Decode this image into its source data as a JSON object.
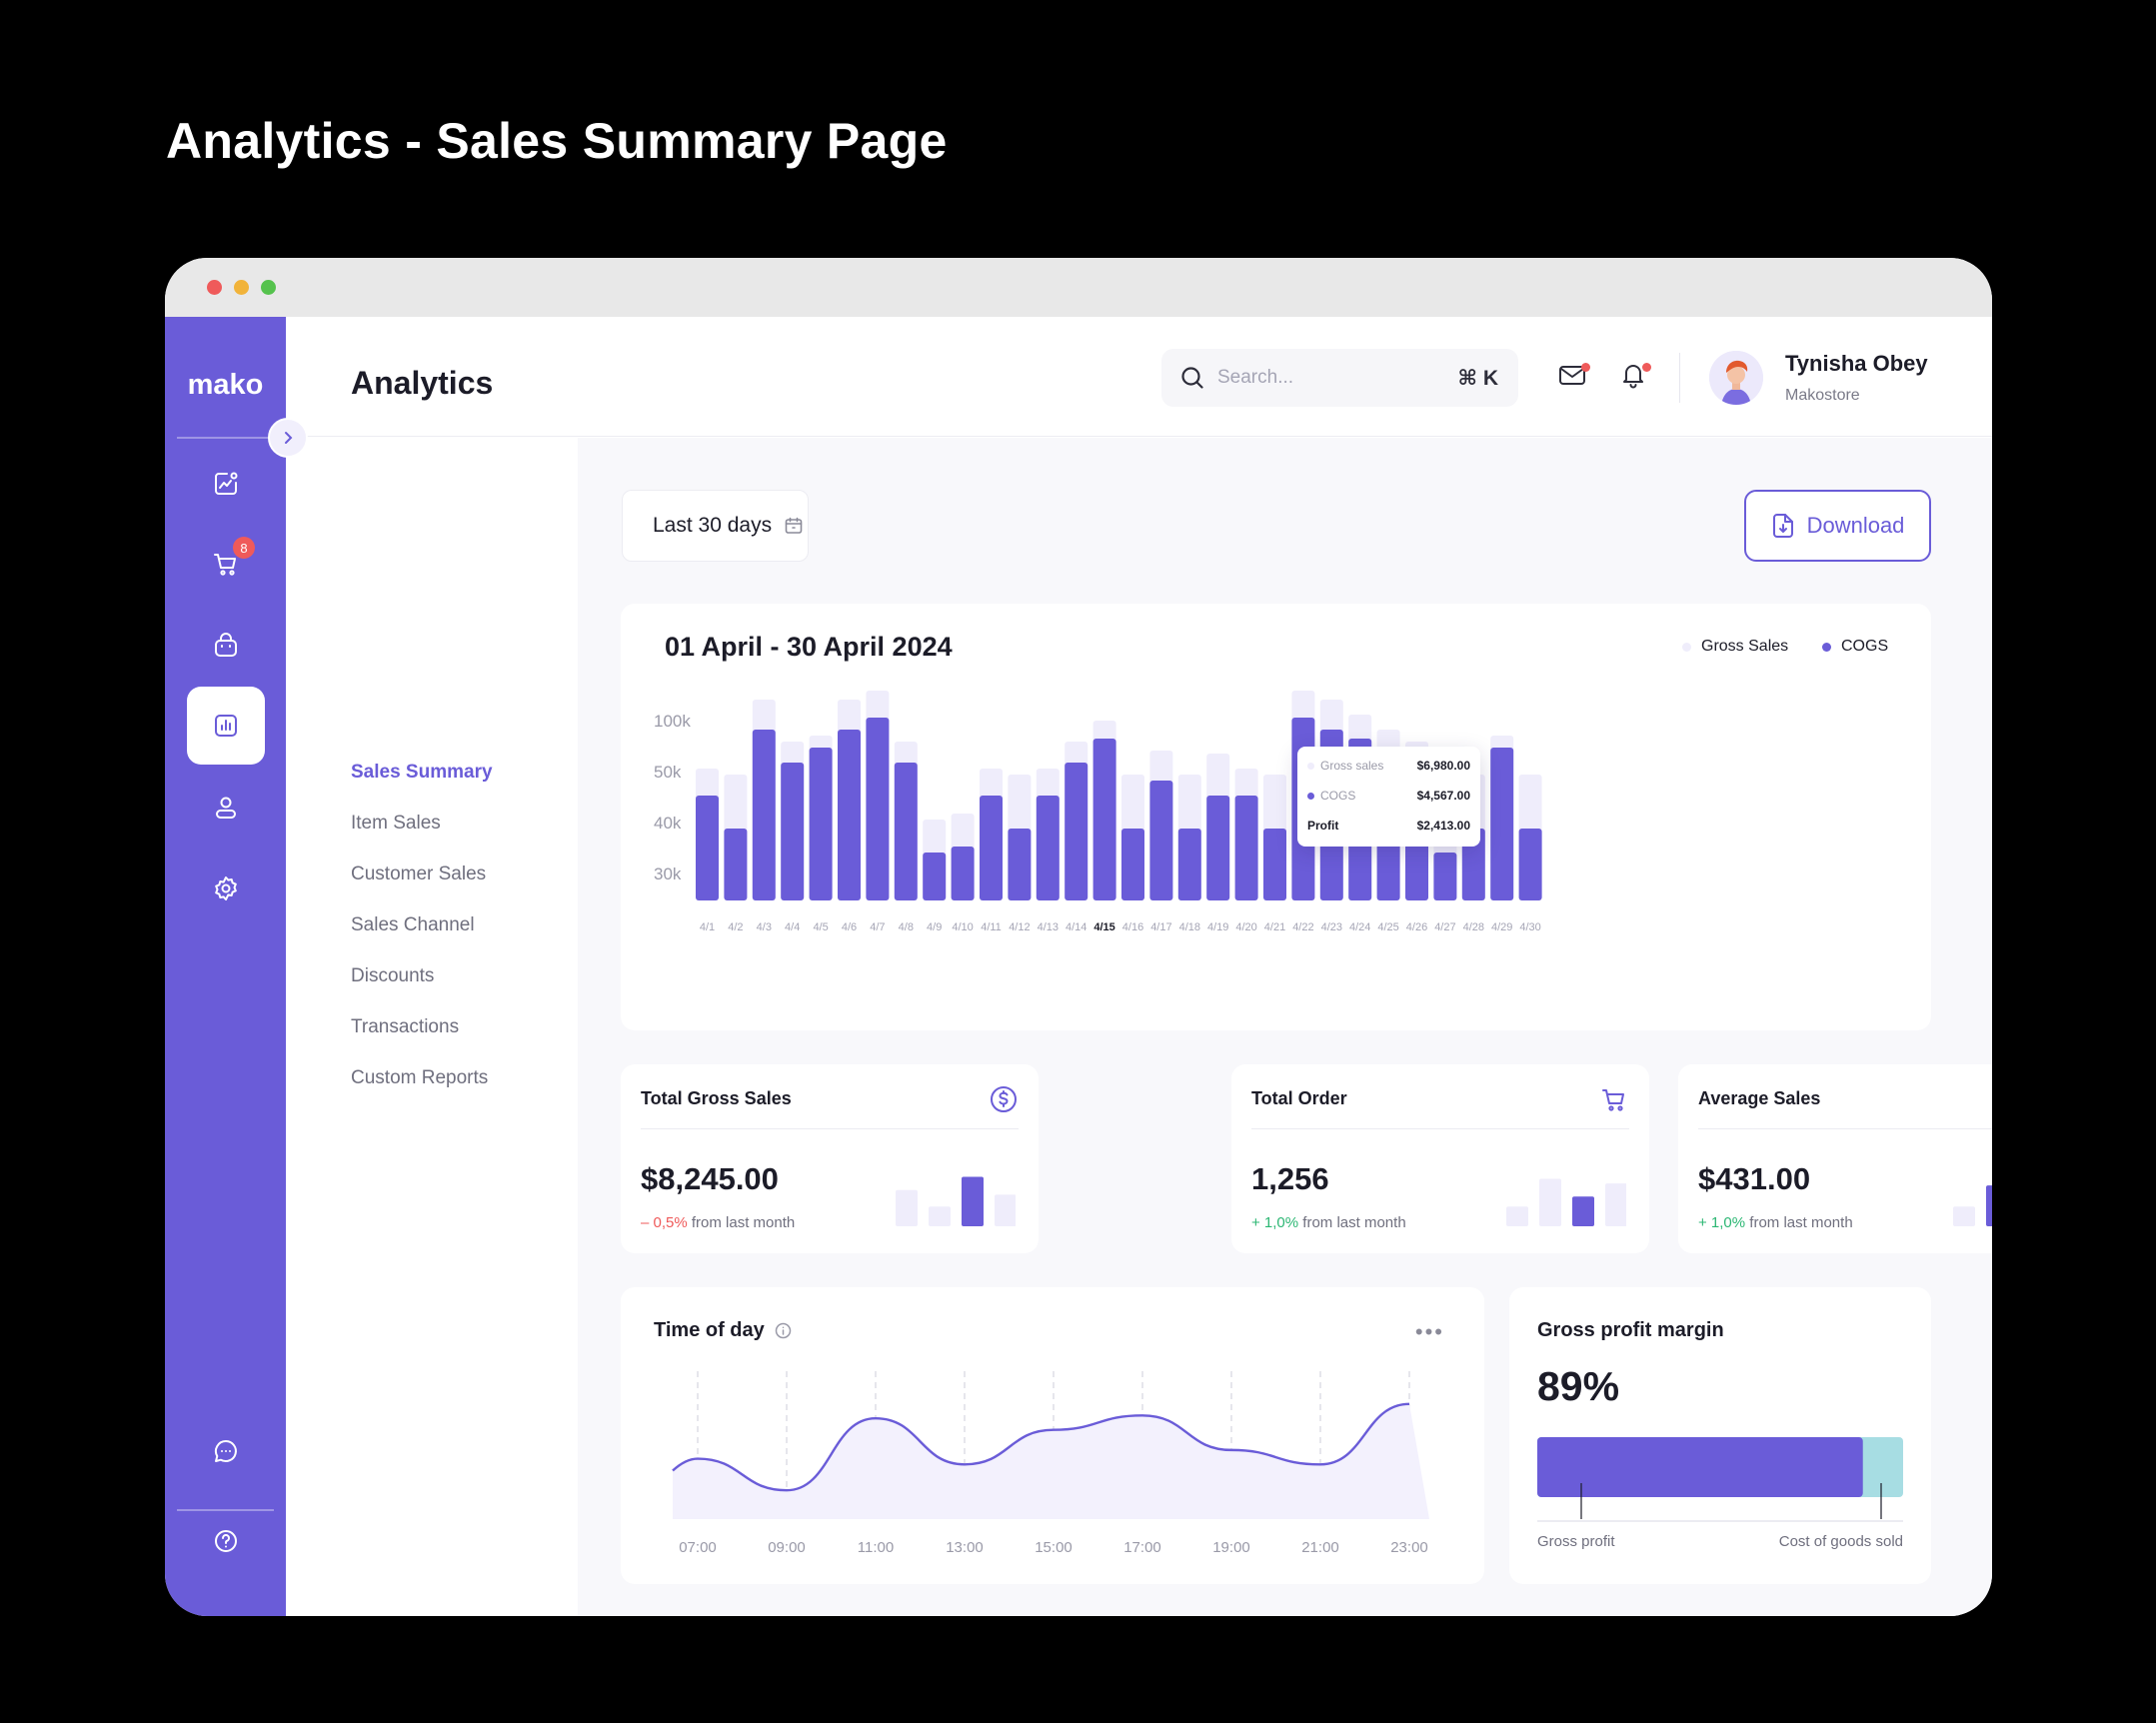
{
  "page_heading": "Analytics - Sales Summary Page",
  "colors": {
    "accent": "#6a5cd8",
    "bar_light": "#efedfb",
    "cost_bar": "#a7dde3",
    "negative": "#ef5a5a",
    "positive": "#2db774"
  },
  "sidebar": {
    "logo": "mako",
    "cart_badge": "8",
    "icons": [
      "dashboard-icon",
      "cart-icon",
      "bag-icon",
      "analytics-icon",
      "user-icon",
      "settings-icon",
      "chat-icon",
      "help-icon"
    ],
    "active": "analytics-icon"
  },
  "header": {
    "title": "Analytics",
    "search": {
      "placeholder": "Search...",
      "shortcut": "⌘ K"
    },
    "user": {
      "name": "Tynisha Obey",
      "store": "Makostore"
    }
  },
  "subnav": {
    "items": [
      {
        "label": "Sales Summary",
        "active": true
      },
      {
        "label": "Item Sales"
      },
      {
        "label": "Customer Sales"
      },
      {
        "label": "Sales Channel"
      },
      {
        "label": "Discounts"
      },
      {
        "label": "Transactions"
      },
      {
        "label": "Custom Reports"
      }
    ]
  },
  "toolbar": {
    "date_range": "Last 30 days",
    "download_label": "Download"
  },
  "sales_chart": {
    "title": "01 April - 30 April 2024",
    "legend": [
      {
        "label": "Gross Sales"
      },
      {
        "label": "COGS"
      }
    ],
    "tooltip": {
      "gross_label": "Gross sales",
      "gross_value": "$6,980.00",
      "cogs_label": "COGS",
      "cogs_value": "$4,567.00",
      "profit_label": "Profit",
      "profit_value": "$2,413.00"
    }
  },
  "chart_data": [
    {
      "type": "bar",
      "title": "01 April - 30 April 2024",
      "categories": [
        "4/1",
        "4/2",
        "4/3",
        "4/4",
        "4/5",
        "4/6",
        "4/7",
        "4/8",
        "4/9",
        "4/10",
        "4/11",
        "4/12",
        "4/13",
        "4/14",
        "4/15",
        "4/16",
        "4/17",
        "4/18",
        "4/19",
        "4/20",
        "4/21",
        "4/22",
        "4/23",
        "4/24",
        "4/25",
        "4/26",
        "4/27",
        "4/28",
        "4/29",
        "4/30"
      ],
      "highlight_category": "4/15",
      "y_tick_labels": [
        "100k",
        "50k",
        "40k",
        "30k"
      ],
      "series": [
        {
          "name": "Gross Sales",
          "values": [
            44,
            42,
            67,
            53,
            55,
            67,
            70,
            53,
            27,
            29,
            44,
            42,
            44,
            53,
            60,
            42,
            50,
            42,
            49,
            44,
            42,
            70,
            67,
            62,
            57,
            53,
            27,
            42,
            55,
            42
          ]
        },
        {
          "name": "COGS",
          "values": [
            35,
            24,
            57,
            46,
            51,
            57,
            61,
            46,
            16,
            18,
            35,
            24,
            35,
            46,
            54,
            24,
            40,
            24,
            35,
            35,
            24,
            61,
            57,
            54,
            49,
            46,
            16,
            24,
            51,
            24
          ]
        }
      ]
    },
    {
      "type": "line",
      "title": "Time of day",
      "x": [
        "07:00",
        "09:00",
        "11:00",
        "13:00",
        "15:00",
        "17:00",
        "19:00",
        "21:00",
        "23:00"
      ],
      "values": [
        42,
        20,
        70,
        38,
        62,
        72,
        48,
        38,
        80
      ]
    },
    {
      "type": "bar",
      "title": "Gross profit margin",
      "stacked": true,
      "series": [
        {
          "name": "Gross profit",
          "values": [
            89
          ]
        },
        {
          "name": "Cost of goods sold",
          "values": [
            11
          ]
        }
      ]
    }
  ],
  "stats": [
    {
      "title": "Total Gross Sales",
      "icon": "dollar-icon",
      "value": "$8,245.00",
      "change": "– 0,5%",
      "direction": "down",
      "suffix": "from last month",
      "bars": [
        55,
        30,
        75,
        48
      ],
      "active_index": 2
    },
    {
      "title": "Total Order",
      "icon": "cart-icon",
      "value": "1,256",
      "change": "+ 1,0%",
      "direction": "up",
      "suffix": "from last month",
      "bars": [
        30,
        72,
        45,
        65
      ],
      "active_index": 2
    },
    {
      "title": "Average Sales",
      "icon": "tag-icon",
      "value": "$431.00",
      "change": "+ 1,0%",
      "direction": "up",
      "suffix": "from last month",
      "bars": [
        30,
        62,
        45,
        75
      ],
      "active_index": 1
    }
  ],
  "time_of_day": {
    "title": "Time of day"
  },
  "gross_profit_margin": {
    "title": "Gross profit margin",
    "value": "89%",
    "left_label": "Gross profit",
    "right_label": "Cost of goods sold"
  }
}
